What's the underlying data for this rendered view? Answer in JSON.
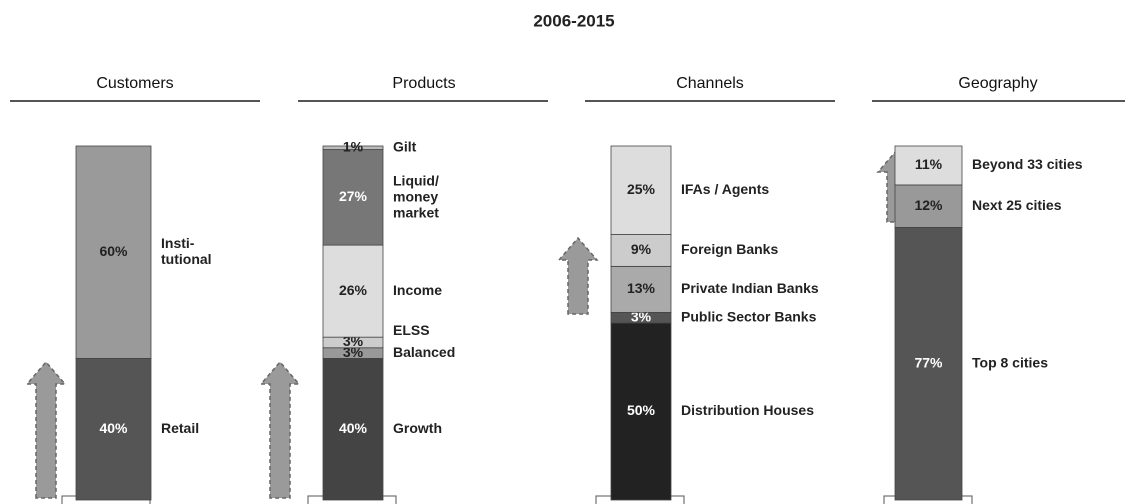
{
  "title": "2006-2015",
  "chart_data": [
    {
      "type": "stacked_bar",
      "title": "Customers",
      "ylim": [
        0,
        100
      ],
      "categories": [
        "Retail",
        "Insti-\ntutional"
      ],
      "values": [
        40,
        60
      ],
      "value_labels": [
        "40%",
        "60%"
      ],
      "colors": [
        "#555555",
        "#9a9a9a"
      ]
    },
    {
      "type": "stacked_bar",
      "title": "Products",
      "ylim": [
        0,
        100
      ],
      "categories": [
        "Growth",
        "Balanced",
        "ELSS",
        "Income",
        "Liquid/\nmoney\nmarket",
        "Gilt"
      ],
      "values": [
        40,
        3,
        3,
        26,
        27,
        1
      ],
      "value_labels": [
        "40%",
        "3%",
        "3%",
        "26%",
        "27%",
        "1%"
      ],
      "colors": [
        "#444444",
        "#999999",
        "#cccccc",
        "#dddddd",
        "#777777",
        "#bbbbbb"
      ]
    },
    {
      "type": "stacked_bar",
      "title": "Channels",
      "ylim": [
        0,
        100
      ],
      "categories": [
        "Distribution Houses",
        "Public Sector Banks",
        "Private Indian Banks",
        "Foreign Banks",
        "IFAs / Agents"
      ],
      "values": [
        50,
        3,
        13,
        9,
        25
      ],
      "value_labels": [
        "50%",
        "3%",
        "13%",
        "9%",
        "25%"
      ],
      "colors": [
        "#222222",
        "#555555",
        "#aaaaaa",
        "#cccccc",
        "#dddddd"
      ]
    },
    {
      "type": "stacked_bar",
      "title": "Geography",
      "ylim": [
        0,
        100
      ],
      "categories": [
        "Top 8 cities",
        "Next 25 cities",
        "Beyond 33 cities"
      ],
      "values": [
        77,
        12,
        11
      ],
      "value_labels": [
        "77%",
        "12%",
        "11%"
      ],
      "colors": [
        "#555555",
        "#999999",
        "#dddddd"
      ]
    }
  ]
}
